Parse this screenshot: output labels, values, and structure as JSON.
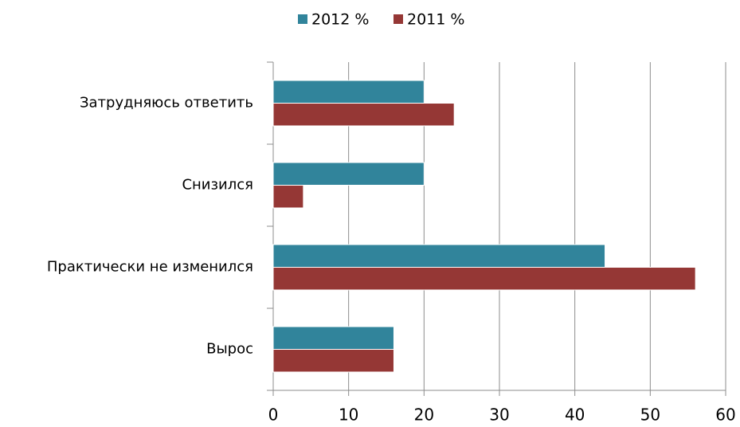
{
  "chart_data": {
    "type": "bar",
    "orientation": "horizontal",
    "categories": [
      "Затрудняюсь ответить",
      "Снизился",
      "Практически не изменился",
      "Вырос"
    ],
    "series": [
      {
        "name": "2012 %",
        "color": "#31849b",
        "values": [
          20,
          20,
          44,
          16
        ]
      },
      {
        "name": "2011 %",
        "color": "#953735",
        "values": [
          24,
          4,
          56,
          16
        ]
      }
    ],
    "xlim": [
      0,
      60
    ],
    "xticks": [
      0,
      10,
      20,
      30,
      40,
      50,
      60
    ],
    "grid": true,
    "legend": "top"
  }
}
